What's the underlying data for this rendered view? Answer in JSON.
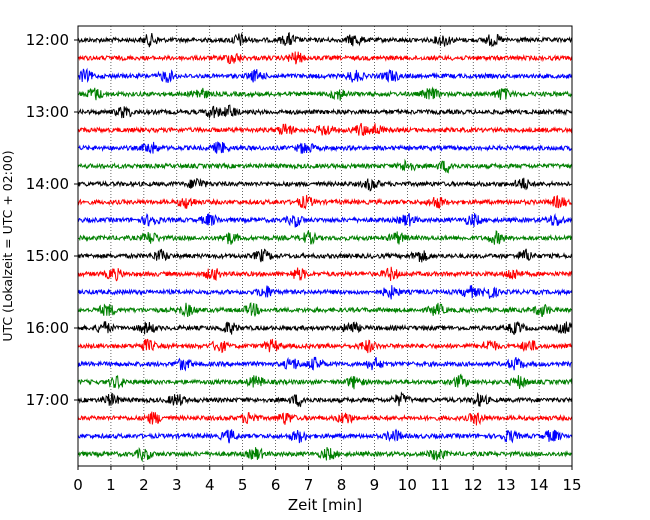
{
  "chart_data": {
    "type": "line",
    "chart_kind": "helicorder",
    "xlabel": "Zeit  [min]",
    "ylabel": "UTC (Lokalzeit = UTC + 02:00)",
    "xlim": [
      0,
      15
    ],
    "x_ticks": [
      "0",
      "1",
      "2",
      "3",
      "4",
      "5",
      "6",
      "7",
      "8",
      "9",
      "10",
      "11",
      "12",
      "13",
      "14",
      "15"
    ],
    "y_ticks": [
      "12:00",
      "13:00",
      "14:00",
      "15:00",
      "16:00",
      "17:00"
    ],
    "grid": "vertical dotted at each minute",
    "trace_interval_minutes": 15,
    "trace_start_times": [
      "12:00",
      "12:15",
      "12:30",
      "12:45",
      "13:00",
      "13:15",
      "13:30",
      "13:45",
      "14:00",
      "14:15",
      "14:30",
      "14:45",
      "15:00",
      "15:15",
      "15:30",
      "15:45",
      "16:00",
      "16:15",
      "16:30",
      "16:45",
      "17:00",
      "17:15",
      "17:30",
      "17:45"
    ],
    "color_cycle": [
      "#000000",
      "#ff0000",
      "#0000ff",
      "#008000"
    ],
    "events": [
      [
        2.2,
        4.9,
        6.4,
        8.4,
        11.1,
        12.6
      ],
      [
        4.7,
        6.6
      ],
      [
        0.2,
        2.7,
        5.4,
        8.4,
        9.5
      ],
      [
        0.5,
        3.7,
        7.9,
        10.7,
        12.9
      ],
      [
        1.4,
        4.1,
        4.6
      ],
      [
        6.3,
        7.5,
        8.6,
        9.0
      ],
      [
        2.2,
        4.3,
        6.9
      ],
      [
        10.0,
        11.2
      ],
      [
        3.6,
        8.9,
        13.5
      ],
      [
        3.3,
        6.9,
        10.9,
        14.6
      ],
      [
        2.2,
        4.0,
        6.6,
        10.0,
        12.0,
        14.5
      ],
      [
        2.2,
        4.6,
        7.0,
        9.7,
        12.7
      ],
      [
        2.5,
        5.6,
        10.4,
        13.6
      ],
      [
        1.1,
        4.1,
        6.7,
        9.5,
        13.2
      ],
      [
        5.7,
        9.5,
        11.9,
        12.5
      ],
      [
        0.9,
        3.3,
        5.3,
        10.9,
        14.1
      ],
      [
        0.8,
        2.1,
        4.6,
        8.3,
        13.3,
        14.8
      ],
      [
        2.1,
        4.3,
        5.9,
        8.8,
        12.5,
        13.7
      ],
      [
        3.2,
        6.5,
        7.2,
        9.0,
        13.3
      ],
      [
        1.2,
        5.4,
        8.4,
        11.6,
        13.4
      ],
      [
        1.0,
        3.0,
        6.7,
        9.8,
        12.2
      ],
      [
        2.3,
        5.2,
        6.3,
        8.1,
        12.1
      ],
      [
        4.6,
        6.7,
        9.6,
        13.1,
        14.4
      ],
      [
        2.0,
        5.4,
        7.6,
        10.9
      ]
    ]
  }
}
